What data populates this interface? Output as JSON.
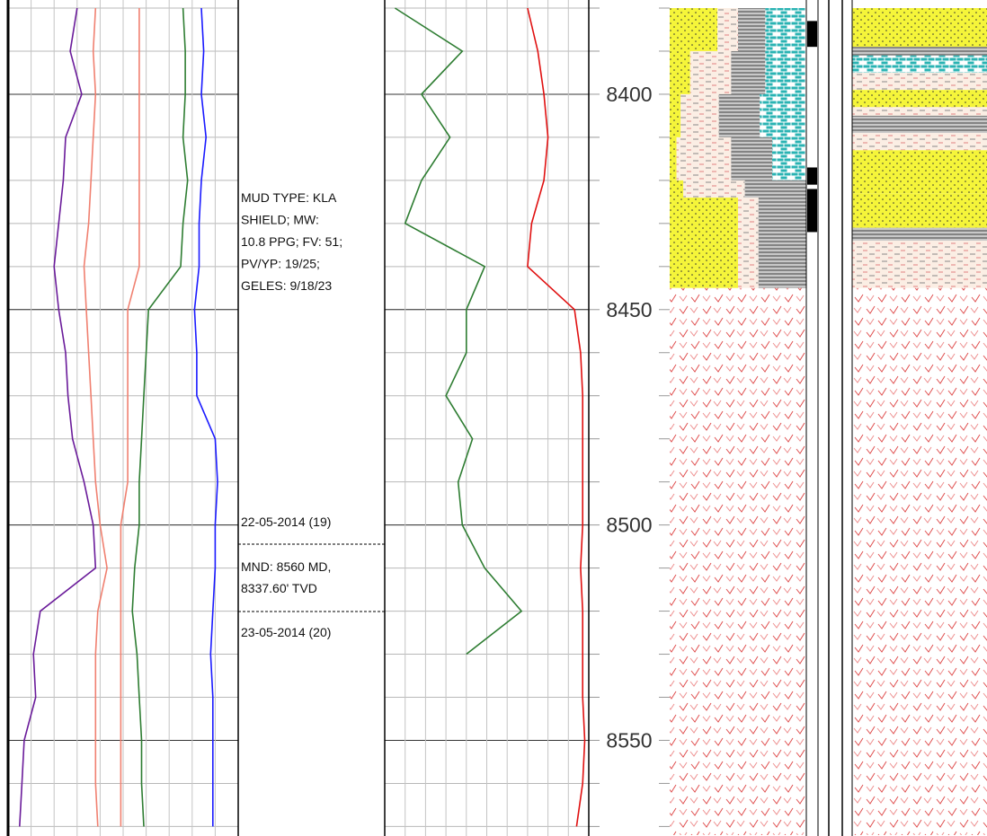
{
  "chart_data": {
    "type": "well-log",
    "ylim": [
      8380,
      8572
    ],
    "yticks": [
      8400,
      8450,
      8500,
      8550
    ],
    "minor_yticks": [
      8380,
      8390,
      8400,
      8410,
      8420,
      8430,
      8440,
      8450,
      8460,
      8470,
      8480,
      8490,
      8500,
      8510,
      8520,
      8530,
      8540,
      8550,
      8560,
      8570
    ],
    "depths": [
      8380,
      8390,
      8400,
      8410,
      8420,
      8430,
      8440,
      8450,
      8460,
      8470,
      8480,
      8490,
      8500,
      8510,
      8520,
      8530,
      8540,
      8550,
      8560,
      8570
    ],
    "tracks": [
      {
        "xlim": [
          0,
          100
        ],
        "xticks": [
          0,
          10,
          20,
          30,
          40,
          50,
          60,
          70,
          80,
          90,
          100
        ],
        "series": [
          {
            "color": "#6a1b9a",
            "values": [
              30,
              27,
              32,
              25,
              24,
              22,
              20,
              22,
              25,
              26,
              28,
              33,
              37,
              38,
              14,
              11,
              12,
              7,
              6,
              5
            ]
          },
          {
            "color": "#f08070",
            "values": [
              38,
              37,
              38,
              37,
              36,
              35,
              33,
              34,
              35,
              36,
              37,
              38,
              40,
              43,
              39,
              38,
              38,
              38,
              38,
              39
            ]
          },
          {
            "color": "#f08070",
            "values": [
              57,
              57,
              57,
              57,
              57,
              57,
              57,
              52,
              52,
              52,
              52,
              52,
              49,
              49,
              49,
              49,
              49,
              49,
              49,
              49
            ]
          },
          {
            "color": "#2e7d32",
            "values": [
              76,
              77,
              77,
              76,
              78,
              76,
              75,
              61,
              60,
              59,
              58,
              57,
              57,
              55,
              54,
              56,
              57,
              58,
              58,
              59
            ]
          },
          {
            "color": "#1a1aff",
            "values": [
              84,
              85,
              84,
              86,
              84,
              83,
              83,
              81,
              82,
              82,
              90,
              91,
              90,
              90,
              89,
              88,
              89,
              89,
              89,
              89
            ]
          }
        ]
      },
      {
        "xlim": [
          0,
          100
        ],
        "xticks": [
          0,
          10,
          20,
          30,
          40,
          50,
          60,
          70,
          80,
          90,
          100
        ],
        "series": [
          {
            "color": "#2e7d32",
            "values": [
              5,
              38,
              18,
              32,
              18,
              10,
              49,
              40,
              40,
              30,
              43,
              36,
              38,
              49,
              67,
              40,
              null,
              null,
              null,
              null
            ]
          },
          {
            "color": "#e01010",
            "values": [
              70,
              75,
              78,
              80,
              78,
              72,
              70,
              93,
              96,
              97,
              97,
              97,
              97,
              96,
              97,
              97,
              97,
              98,
              97,
              94
            ]
          }
        ]
      }
    ],
    "annotations": {
      "mud": [
        "MUD TYPE: KLA",
        "SHIELD; MW:",
        "10.8 PPG; FV: 51;",
        "PV/YP: 19/25;",
        "GELES: 9/18/23"
      ],
      "date1": "22-05-2014 (19)",
      "mnd": [
        "MND: 8560 MD,",
        "8337.60' TVD"
      ],
      "date2": "23-05-2014 (20)"
    },
    "lithology_percent": {
      "tops": [
        8380,
        8390,
        8400,
        8410,
        8420,
        8424,
        8445
      ],
      "bases": [
        8390,
        8400,
        8410,
        8420,
        8424,
        8445,
        8572
      ],
      "series": [
        {
          "pattern": "dots",
          "values": [
            35,
            15,
            8,
            5,
            10,
            50,
            0
          ]
        },
        {
          "pattern": "dashes",
          "values": [
            15,
            30,
            28,
            40,
            45,
            15,
            0
          ]
        },
        {
          "pattern": "lines",
          "values": [
            20,
            25,
            30,
            30,
            45,
            35,
            0
          ]
        },
        {
          "pattern": "brick",
          "values": [
            30,
            30,
            34,
            25,
            0,
            0,
            0
          ]
        },
        {
          "pattern": "checks",
          "values": [
            0,
            0,
            0,
            0,
            0,
            0,
            100
          ]
        }
      ]
    },
    "marker": {
      "tops": [
        8383,
        8417,
        8422
      ],
      "bases": [
        8389,
        8421,
        8432
      ]
    },
    "lithology": {
      "tops": [
        8380,
        8389,
        8391,
        8395,
        8399,
        8403,
        8405,
        8409,
        8413,
        8423,
        8431,
        8434,
        8445
      ],
      "bases": [
        8389,
        8391,
        8395,
        8399,
        8403,
        8405,
        8409,
        8413,
        8423,
        8431,
        8434,
        8445,
        8572
      ],
      "patterns": [
        "dots",
        "lines",
        "brick",
        "dashes",
        "dots",
        "dashes",
        "lines",
        "dashes",
        "dots",
        "dots",
        "lines",
        "dashes",
        "checks"
      ]
    }
  }
}
